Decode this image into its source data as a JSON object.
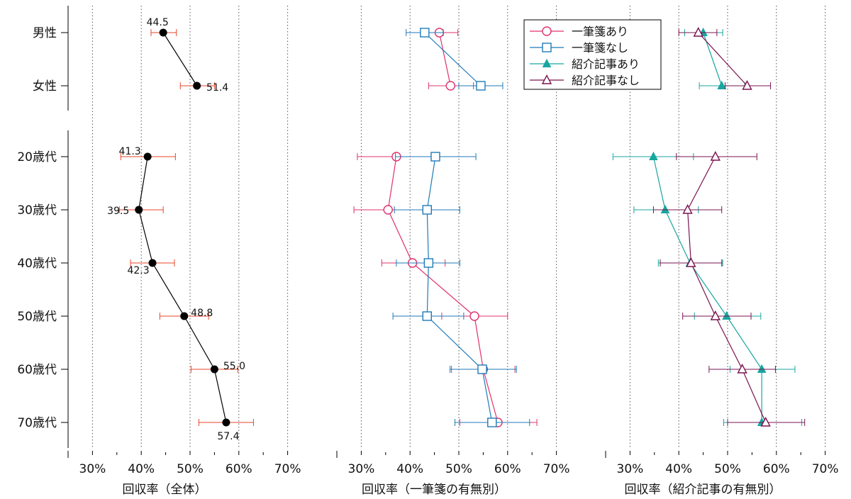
{
  "categories": {
    "gender": [
      "男性",
      "女性"
    ],
    "age": [
      "20歳代",
      "30歳代",
      "40歳代",
      "50歳代",
      "60歳代",
      "70歳代"
    ]
  },
  "axis_titles": [
    "回収率（全体）",
    "回収率（一筆箋の有無別）",
    "回収率（紹介記事の有無別）"
  ],
  "ticks": [
    "30%",
    "40%",
    "50%",
    "60%",
    "70%"
  ],
  "legend": [
    "一筆箋あり",
    "一筆箋なし",
    "紹介記事あり",
    "紹介記事なし"
  ],
  "colors": {
    "overall": "#000000",
    "overall_error": "#e8462a",
    "note_yes": "#e0306e",
    "note_no": "#1f7ab8",
    "article_yes": "#18a6a0",
    "article_no": "#7a1450"
  },
  "chart_data": [
    {
      "type": "dot-errorbar",
      "panel": "overall",
      "xlabel": "回収率（全体）",
      "xlim": [
        25,
        72
      ],
      "xticks": [
        30,
        40,
        50,
        60,
        70
      ],
      "grid": true,
      "gender": {
        "values": [
          44.5,
          51.4
        ],
        "lower": [
          42,
          48
        ],
        "upper": [
          47.2,
          55
        ],
        "labels": [
          "44.5",
          "51.4"
        ]
      },
      "age": {
        "values": [
          41.3,
          39.5,
          42.3,
          48.8,
          55.0,
          57.4
        ],
        "lower": [
          35.8,
          35.5,
          37.8,
          43.8,
          50.2,
          51.8
        ],
        "upper": [
          47,
          44.5,
          46.8,
          53.8,
          59.8,
          63
        ],
        "labels": [
          "41.3",
          "39.5",
          "42.3",
          "48.8",
          "55.0",
          "57.4"
        ]
      }
    },
    {
      "type": "dot-errorbar",
      "panel": "note",
      "xlabel": "回収率（一筆箋の有無別）",
      "xlim": [
        25,
        72
      ],
      "xticks": [
        30,
        40,
        50,
        60,
        70
      ],
      "grid": true,
      "legend_position": "top-right",
      "series": [
        {
          "name": "一筆箋あり",
          "marker": "circle",
          "gender": {
            "values": [
              46,
              48.3
            ],
            "lower": [
              42.2,
              43.8
            ],
            "upper": [
              49.8,
              53
            ]
          },
          "age": {
            "values": [
              37.2,
              35.5,
              40.5,
              53.2,
              55.0,
              58.0
            ],
            "lower": [
              29.2,
              28.5,
              34.2,
              46.5,
              48.5,
              50.2
            ],
            "upper": [
              45.5,
              43.2,
              47.2,
              60,
              61.5,
              66
            ]
          }
        },
        {
          "name": "一筆箋なし",
          "marker": "square",
          "gender": {
            "values": [
              43,
              54.5
            ],
            "lower": [
              39.2,
              50
            ],
            "upper": [
              46.8,
              59
            ]
          },
          "age": {
            "values": [
              45.2,
              43.5,
              43.8,
              43.5,
              54.8,
              56.8
            ],
            "lower": [
              37,
              36.8,
              37.2,
              36.5,
              48.2,
              49.2
            ],
            "upper": [
              53.5,
              50.2,
              50.2,
              51.0,
              61.8,
              64.5
            ]
          }
        }
      ]
    },
    {
      "type": "dot-errorbar",
      "panel": "article",
      "xlabel": "回収率（紹介記事の有無別）",
      "xlim": [
        25,
        72
      ],
      "xticks": [
        30,
        40,
        50,
        60,
        70
      ],
      "grid": true,
      "series": [
        {
          "name": "紹介記事あり",
          "marker": "triangle-filled",
          "gender": {
            "values": [
              45,
              48.8
            ],
            "lower": [
              41.2,
              44.2
            ],
            "upper": [
              49,
              53.5
            ]
          },
          "age": {
            "values": [
              34.8,
              37.2,
              42.3,
              49.8,
              57.0,
              57.0
            ],
            "lower": [
              26.5,
              30.8,
              35.8,
              43.2,
              50.5,
              49.2
            ],
            "upper": [
              43,
              44,
              49,
              56.8,
              63.8,
              65.2
            ]
          }
        },
        {
          "name": "紹介記事なし",
          "marker": "triangle-open",
          "gender": {
            "values": [
              44,
              54
            ],
            "lower": [
              40,
              49.5
            ],
            "upper": [
              47.8,
              58.8
            ]
          },
          "age": {
            "values": [
              47.5,
              41.8,
              42.5,
              47.5,
              53.0,
              57.8
            ],
            "lower": [
              39.5,
              34.8,
              36.2,
              40.8,
              46.2,
              50.0
            ],
            "upper": [
              56,
              48.8,
              48.8,
              54.8,
              59.8,
              65.8
            ]
          }
        }
      ]
    }
  ]
}
